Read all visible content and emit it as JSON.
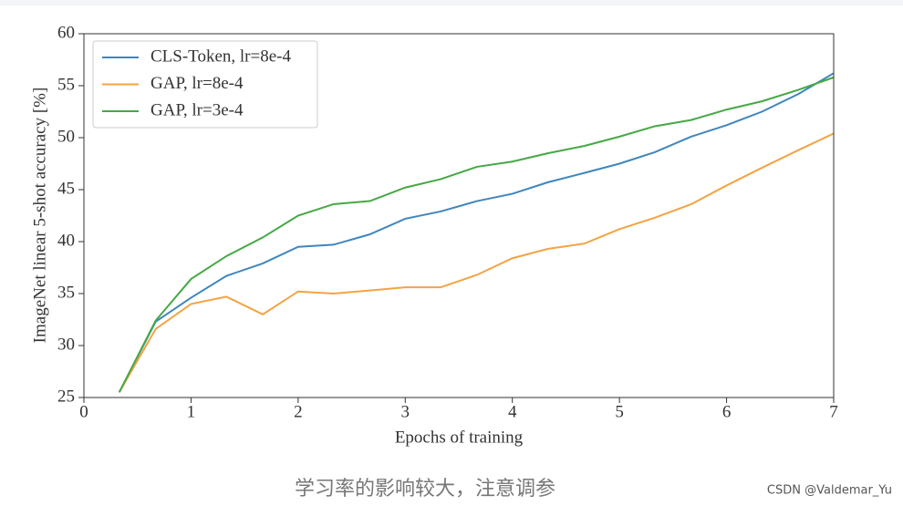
{
  "chart_data": {
    "type": "line",
    "xlabel": "Epochs of training",
    "ylabel": "ImageNet linear 5-shot accuracy [%]",
    "x": [
      0.33,
      0.67,
      1.0,
      1.33,
      1.67,
      2.0,
      2.33,
      2.67,
      3.0,
      3.33,
      3.67,
      4.0,
      4.33,
      4.67,
      5.0,
      5.33,
      5.67,
      6.0,
      6.33,
      6.67,
      7.0
    ],
    "series": [
      {
        "name": "CLS-Token, lr=8e-4",
        "color": "#3f86bd",
        "values": [
          25.5,
          32.3,
          34.6,
          36.7,
          37.9,
          39.5,
          39.7,
          40.7,
          42.2,
          42.9,
          43.9,
          44.6,
          45.7,
          46.6,
          47.5,
          48.6,
          50.1,
          51.2,
          52.5,
          54.2,
          56.2
        ]
      },
      {
        "name": "GAP, lr=8e-4",
        "color": "#f3a443",
        "values": [
          25.5,
          31.6,
          34.0,
          34.7,
          33.0,
          35.2,
          35.0,
          35.3,
          35.6,
          35.6,
          36.8,
          38.4,
          39.3,
          39.8,
          41.2,
          42.3,
          43.6,
          45.4,
          47.1,
          48.8,
          50.4
        ]
      },
      {
        "name": "GAP, lr=3e-4",
        "color": "#45a845",
        "values": [
          25.5,
          32.4,
          36.4,
          38.6,
          40.4,
          42.5,
          43.6,
          43.9,
          45.2,
          46.0,
          47.2,
          47.7,
          48.5,
          49.2,
          50.1,
          51.1,
          51.7,
          52.7,
          53.5,
          54.6,
          55.8
        ]
      }
    ],
    "xlim": [
      0,
      7
    ],
    "xticks": [
      0,
      1,
      2,
      3,
      4,
      5,
      6,
      7
    ],
    "ylim": [
      25,
      60
    ],
    "yticks": [
      25,
      30,
      35,
      40,
      45,
      50,
      55,
      60
    ],
    "legend": "upper left",
    "grid": false
  },
  "caption": "学习率的影响较大，注意调参",
  "watermark": "CSDN @Valdemar_Yu"
}
